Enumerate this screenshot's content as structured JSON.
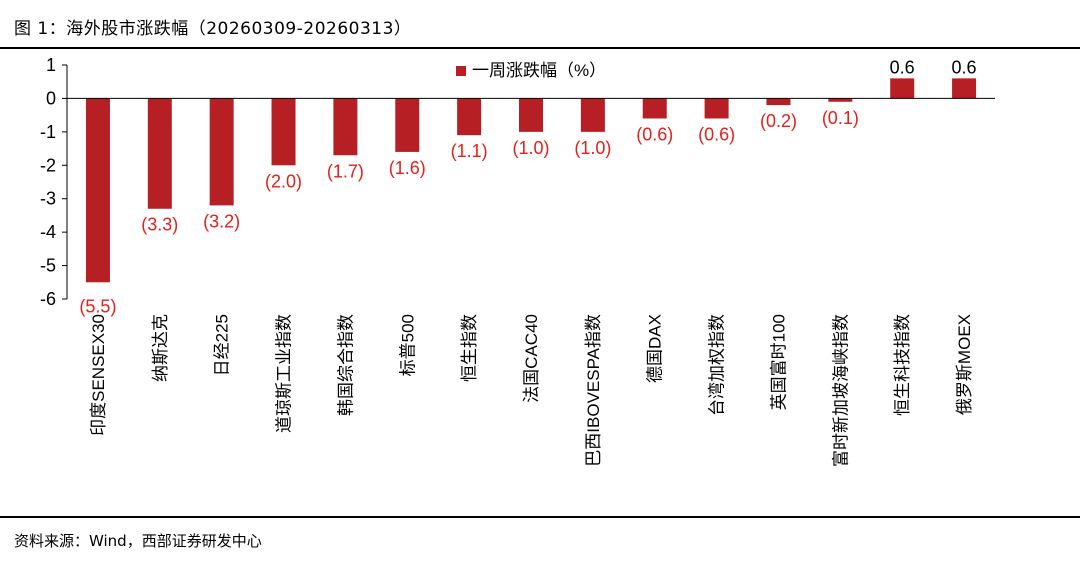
{
  "title": "图 1：海外股市涨跌幅（20260309-20260313）",
  "source": "资料来源：Wind，西部证券研发中心",
  "colors": {
    "bar": "#B61F24",
    "negative_label": "#E0211C",
    "positive_label": "#000000",
    "axis": "#000000"
  },
  "chart_data": {
    "type": "bar",
    "legend": "一周涨跌幅（%）",
    "legend_position": "top",
    "grid": false,
    "ylim": [
      -6,
      1
    ],
    "yticks": [
      1,
      0,
      -1,
      -2,
      -3,
      -4,
      -5,
      -6
    ],
    "categories": [
      "印度SENSEX30",
      "纳斯达克",
      "日经225",
      "道琼斯工业指数",
      "韩国综合指数",
      "标普500",
      "恒生指数",
      "法国CAC40",
      "巴西IBOVESPA指数",
      "德国DAX",
      "台湾加权指数",
      "英国富时100",
      "富时新加坡海峡指数",
      "恒生科技指数",
      "俄罗斯MOEX"
    ],
    "values": [
      -5.5,
      -3.3,
      -3.2,
      -2.0,
      -1.7,
      -1.6,
      -1.1,
      -1.0,
      -1.0,
      -0.6,
      -0.6,
      -0.2,
      -0.1,
      0.6,
      0.6
    ],
    "data_labels": [
      "(5.5)",
      "(3.3)",
      "(3.2)",
      "(2.0)",
      "(1.7)",
      "(1.6)",
      "(1.1)",
      "(1.0)",
      "(1.0)",
      "(0.6)",
      "(0.6)",
      "(0.2)",
      "(0.1)",
      "0.6",
      "0.6"
    ]
  }
}
